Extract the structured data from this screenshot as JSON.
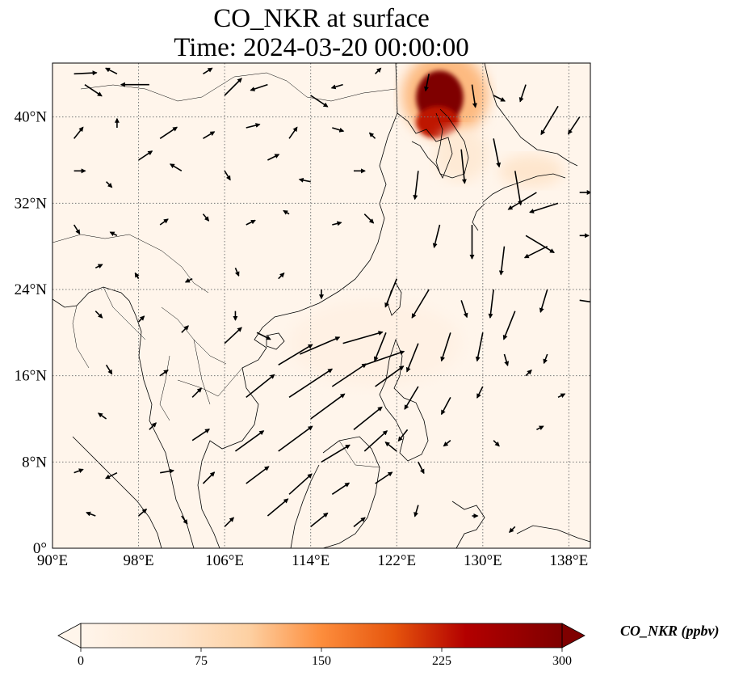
{
  "title_line1": "CO_NKR at surface",
  "title_line2": "Time: 2024-03-20 00:00:00",
  "map": {
    "lon_range": [
      90,
      140
    ],
    "lat_range": [
      0,
      45
    ],
    "lon_ticks": [
      {
        "value": 90,
        "label": "90°E"
      },
      {
        "value": 98,
        "label": "98°E"
      },
      {
        "value": 106,
        "label": "106°E"
      },
      {
        "value": 114,
        "label": "114°E"
      },
      {
        "value": 122,
        "label": "122°E"
      },
      {
        "value": 130,
        "label": "130°E"
      },
      {
        "value": 138,
        "label": "138°E"
      }
    ],
    "lat_ticks": [
      {
        "value": 0,
        "label": "0°"
      },
      {
        "value": 8,
        "label": "8°N"
      },
      {
        "value": 16,
        "label": "16°N"
      },
      {
        "value": 24,
        "label": "24°N"
      },
      {
        "value": 32,
        "label": "32°N"
      },
      {
        "value": 40,
        "label": "40°N"
      }
    ],
    "gridlines": true,
    "background_color": "#fff5eb",
    "plume": [
      {
        "lon": 126.5,
        "lat": 42.0,
        "rx": 4.0,
        "ry": 4.0,
        "level": 120
      },
      {
        "lon": 126.0,
        "lat": 41.8,
        "rx": 2.2,
        "ry": 2.5,
        "level": 300
      },
      {
        "lon": 125.8,
        "lat": 39.5,
        "rx": 2.0,
        "ry": 1.5,
        "level": 230
      },
      {
        "lon": 134.5,
        "lat": 35.0,
        "rx": 3.0,
        "ry": 1.5,
        "level": 60
      },
      {
        "lon": 128.0,
        "lat": 36.5,
        "rx": 2.5,
        "ry": 2.5,
        "level": 45
      },
      {
        "lon": 120.0,
        "lat": 19.0,
        "rx": 8.0,
        "ry": 4.0,
        "level": 15
      }
    ],
    "wind_vectors": [
      [
        92,
        44,
        2.0,
        0.1
      ],
      [
        93,
        43,
        1.5,
        -1.0
      ],
      [
        96,
        44,
        -1.0,
        0.5
      ],
      [
        99,
        43,
        -2.5,
        0.0
      ],
      [
        104,
        44,
        0.8,
        0.5
      ],
      [
        106,
        42,
        1.5,
        1.5
      ],
      [
        110,
        43,
        -1.5,
        -0.5
      ],
      [
        114,
        42,
        1.5,
        -1.0
      ],
      [
        117,
        43,
        -1.0,
        -0.3
      ],
      [
        120,
        44,
        0.5,
        0.5
      ],
      [
        92,
        38,
        0.8,
        1.0
      ],
      [
        96,
        39,
        0.0,
        0.8
      ],
      [
        100,
        38,
        1.5,
        1.0
      ],
      [
        104,
        38,
        1.0,
        0.6
      ],
      [
        108,
        39,
        1.2,
        0.3
      ],
      [
        112,
        38,
        0.7,
        1.0
      ],
      [
        116,
        39,
        1.0,
        -0.3
      ],
      [
        120,
        38,
        -0.5,
        0.5
      ],
      [
        92,
        35,
        1.0,
        0.0
      ],
      [
        95,
        34,
        0.5,
        -0.5
      ],
      [
        98,
        36,
        1.2,
        0.8
      ],
      [
        102,
        35,
        -1.0,
        0.6
      ],
      [
        106,
        35,
        0.5,
        -0.8
      ],
      [
        110,
        36,
        1.0,
        0.5
      ],
      [
        114,
        34,
        -1.0,
        0.2
      ],
      [
        118,
        35,
        1.0,
        0.0
      ],
      [
        92,
        30,
        0.5,
        -0.8
      ],
      [
        96,
        29,
        -0.6,
        0.3
      ],
      [
        100,
        30,
        0.7,
        0.5
      ],
      [
        104,
        31,
        0.5,
        -0.6
      ],
      [
        108,
        30,
        0.8,
        0.4
      ],
      [
        112,
        31,
        -0.5,
        0.3
      ],
      [
        116,
        30,
        0.8,
        0.2
      ],
      [
        119,
        31,
        0.8,
        -0.8
      ],
      [
        94,
        26,
        0.6,
        0.3
      ],
      [
        98,
        25,
        -0.3,
        0.5
      ],
      [
        103,
        25,
        -0.6,
        -0.3
      ],
      [
        107,
        26,
        0.3,
        -0.7
      ],
      [
        111,
        25,
        0.5,
        0.5
      ],
      [
        115,
        24,
        0.0,
        -0.8
      ],
      [
        94,
        22,
        0.6,
        -0.6
      ],
      [
        98,
        21,
        0.5,
        0.5
      ],
      [
        102,
        20,
        0.6,
        0.6
      ],
      [
        107,
        22,
        0.0,
        -0.8
      ],
      [
        109,
        20,
        1.2,
        -0.6
      ],
      [
        113,
        18,
        3.5,
        1.5
      ],
      [
        117,
        19,
        3.5,
        1.0
      ],
      [
        119,
        17,
        3.5,
        1.2
      ],
      [
        111,
        17,
        3.0,
        1.8
      ],
      [
        106,
        19,
        1.5,
        1.4
      ],
      [
        95,
        17,
        0.5,
        -0.8
      ],
      [
        100,
        16,
        0.7,
        0.5
      ],
      [
        103,
        14,
        0.8,
        0.8
      ],
      [
        108,
        14,
        2.5,
        2.0
      ],
      [
        112,
        14,
        3.8,
        2.5
      ],
      [
        116,
        15,
        3.0,
        2.0
      ],
      [
        120,
        15,
        2.5,
        1.8
      ],
      [
        114,
        12,
        3.0,
        2.2
      ],
      [
        118,
        11,
        2.5,
        2.0
      ],
      [
        95,
        12,
        -0.7,
        0.5
      ],
      [
        99,
        11,
        0.6,
        0.6
      ],
      [
        103,
        10,
        1.5,
        1.0
      ],
      [
        107,
        9,
        2.5,
        1.8
      ],
      [
        111,
        9,
        3.0,
        2.2
      ],
      [
        115,
        8,
        2.5,
        1.5
      ],
      [
        119,
        9,
        2.0,
        1.8
      ],
      [
        122,
        9,
        -1.0,
        0.8
      ],
      [
        124,
        8,
        0.5,
        -1.0
      ],
      [
        92,
        7,
        0.8,
        0.3
      ],
      [
        96,
        7,
        -1.0,
        -0.5
      ],
      [
        100,
        7,
        1.2,
        0.2
      ],
      [
        104,
        6,
        1.0,
        1.0
      ],
      [
        108,
        6,
        2.0,
        1.5
      ],
      [
        112,
        5,
        2.0,
        1.8
      ],
      [
        116,
        5,
        1.5,
        1.0
      ],
      [
        120,
        6,
        1.5,
        1.0
      ],
      [
        94,
        3,
        -0.8,
        0.3
      ],
      [
        98,
        3,
        0.7,
        0.6
      ],
      [
        102,
        3,
        0.5,
        -0.7
      ],
      [
        106,
        2,
        0.8,
        0.8
      ],
      [
        110,
        3,
        1.8,
        1.5
      ],
      [
        114,
        2,
        1.5,
        1.2
      ],
      [
        118,
        2,
        1.0,
        0.8
      ],
      [
        125,
        44,
        -0.3,
        -1.5
      ],
      [
        129,
        43,
        0.3,
        -2.0
      ],
      [
        131,
        42,
        1.0,
        -0.5
      ],
      [
        134,
        43,
        -0.5,
        -1.5
      ],
      [
        137,
        41,
        -1.5,
        -2.5
      ],
      [
        139,
        40,
        -1.0,
        -1.5
      ],
      [
        124,
        35,
        -0.3,
        -2.5
      ],
      [
        128,
        37,
        0.3,
        -3.0
      ],
      [
        131,
        38,
        0.5,
        -2.5
      ],
      [
        133,
        35,
        0.5,
        -3.0
      ],
      [
        135,
        33,
        -2.5,
        -1.5
      ],
      [
        137,
        32,
        -2.5,
        -0.8
      ],
      [
        139,
        33,
        1.0,
        0.0
      ],
      [
        126,
        30,
        -0.5,
        -2.0
      ],
      [
        129,
        30,
        0.0,
        -3.0
      ],
      [
        132,
        28,
        -0.3,
        -2.5
      ],
      [
        134,
        29,
        2.5,
        -1.5
      ],
      [
        136,
        28,
        -2.0,
        -1.0
      ],
      [
        139,
        29,
        0.8,
        0.0
      ],
      [
        122,
        25,
        -1.0,
        -2.5
      ],
      [
        125,
        24,
        -1.5,
        -2.5
      ],
      [
        128,
        23,
        0.5,
        -1.5
      ],
      [
        131,
        24,
        -0.3,
        -2.5
      ],
      [
        133,
        22,
        -1.0,
        -2.5
      ],
      [
        136,
        24,
        -0.6,
        -2.0
      ],
      [
        139,
        23,
        2.0,
        -0.3
      ],
      [
        121,
        20,
        -1.0,
        -2.5
      ],
      [
        124,
        19,
        -1.0,
        -2.5
      ],
      [
        127,
        20,
        -0.8,
        -2.5
      ],
      [
        130,
        20,
        -0.5,
        -2.5
      ],
      [
        132,
        18,
        0.3,
        -1.0
      ],
      [
        136,
        18,
        -0.3,
        -0.8
      ],
      [
        124,
        15,
        -1.2,
        -2.0
      ],
      [
        127,
        14,
        -0.8,
        -1.5
      ],
      [
        130,
        15,
        -0.5,
        -1.0
      ],
      [
        134,
        16,
        0.5,
        0.5
      ],
      [
        137,
        14,
        0.6,
        0.3
      ],
      [
        123,
        11,
        -0.8,
        -1.0
      ],
      [
        127,
        10,
        -0.6,
        -0.5
      ],
      [
        131,
        10,
        0.5,
        -0.5
      ],
      [
        135,
        11,
        0.6,
        0.3
      ],
      [
        124,
        4,
        -0.3,
        -1.0
      ],
      [
        129,
        3,
        0.5,
        0.0
      ],
      [
        133,
        2,
        -0.5,
        -0.5
      ]
    ]
  },
  "colorbar": {
    "vmin": 0,
    "vmax": 300,
    "ticks": [
      0,
      75,
      150,
      225,
      300
    ],
    "label": "CO_NKR (ppbv)",
    "extend": "both"
  }
}
